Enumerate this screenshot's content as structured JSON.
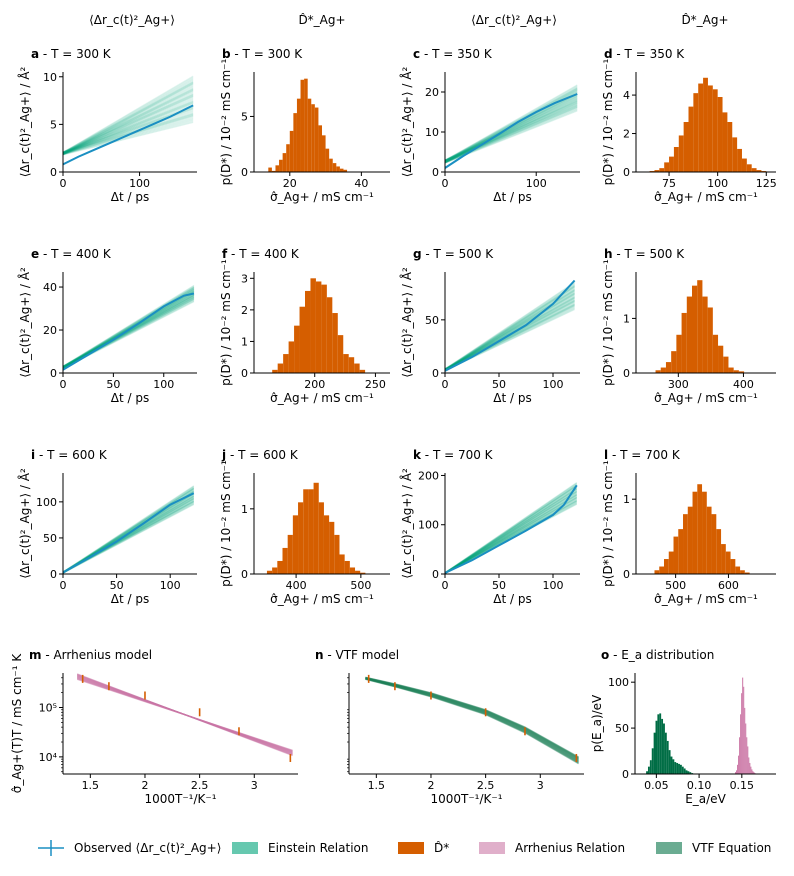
{
  "colors": {
    "observed": "#1a8fc2",
    "einstein": "#00a37a",
    "dstar": "#d55e00",
    "arrhenius": "#cc79a7",
    "vtf": "#1b7f58",
    "ea_arr": "#cc79a7",
    "ea_vtf": "#006d45"
  },
  "column_headers": [
    "⟨Δr_c(t)²_Ag+⟩",
    "D̂*_Ag+",
    "⟨Δr_c(t)²_Ag+⟩",
    "D̂*_Ag+"
  ],
  "legend": [
    "Observed ⟨Δr_c(t)²_Ag+⟩",
    "Einstein Relation",
    "D̂*",
    "Arrhenius Relation",
    "VTF Equation"
  ],
  "chart_data": [
    {
      "id": "a",
      "type": "line",
      "title_letter": "a",
      "title": " - T = 300 K",
      "xlabel": "Δt / ps",
      "ylabel": "⟨Δr_c(t)²_Ag+⟩ / Å²",
      "xlim": [
        0,
        175
      ],
      "ylim": [
        0,
        10.5
      ],
      "xticks": [
        0,
        100
      ],
      "yticks": [
        0,
        5,
        10
      ],
      "tmax": 170,
      "observed": {
        "x": [
          0,
          20,
          40,
          60,
          80,
          100,
          120,
          140,
          160,
          170
        ],
        "y": [
          0.8,
          1.6,
          2.3,
          3.0,
          3.7,
          4.4,
          5.1,
          5.8,
          6.6,
          7.0
        ]
      },
      "einstein": {
        "intercept": [
          1.8,
          2.1
        ],
        "slope": [
          0.02,
          0.047
        ]
      }
    },
    {
      "id": "b",
      "type": "bar",
      "title_letter": "b",
      "title": " - T = 300 K",
      "xlabel": "σ̂_Ag+ / mS cm⁻¹",
      "ylabel": "p(D*) / 10⁻² mS cm⁻¹",
      "xlim": [
        10,
        48
      ],
      "ylim": [
        0,
        9
      ],
      "xticks": [
        20,
        40
      ],
      "yticks": [
        0,
        5
      ],
      "edges_start": 14,
      "bin_width": 1,
      "values": [
        0.4,
        0.1,
        0.6,
        1.1,
        1.7,
        2.5,
        3.7,
        5.3,
        6.6,
        8.3,
        8.4,
        6.6,
        6.1,
        5.8,
        4.2,
        3.3,
        2.1,
        1.2,
        0.8,
        0.5,
        0.3,
        0.2
      ]
    },
    {
      "id": "c",
      "type": "line",
      "title_letter": "c",
      "title": " - T = 350 K",
      "xlabel": "Δt / ps",
      "ylabel": "⟨Δr_c(t)²_Ag+⟩ / Å²",
      "xlim": [
        0,
        148
      ],
      "ylim": [
        0,
        25
      ],
      "xticks": [
        0,
        100
      ],
      "yticks": [
        0,
        10,
        20
      ],
      "tmax": 145,
      "observed": {
        "x": [
          0,
          20,
          40,
          60,
          80,
          100,
          120,
          145
        ],
        "y": [
          1.0,
          4.0,
          6.8,
          9.6,
          12.5,
          15.0,
          17.2,
          19.5
        ]
      },
      "einstein": {
        "intercept": [
          2.2,
          3.0
        ],
        "slope": [
          0.09,
          0.13
        ]
      }
    },
    {
      "id": "d",
      "type": "bar",
      "title_letter": "d",
      "title": " - T = 350 K",
      "xlabel": "σ̂_Ag+ / mS cm⁻¹",
      "ylabel": "p(D*) / 10⁻² mS cm⁻¹",
      "xlim": [
        58,
        130
      ],
      "ylim": [
        0,
        5.2
      ],
      "xticks": [
        75,
        100,
        125
      ],
      "yticks": [
        0,
        2,
        4
      ],
      "edges_start": 65,
      "bin_width": 2.5,
      "values": [
        0.05,
        0.1,
        0.2,
        0.5,
        0.8,
        1.3,
        1.9,
        2.6,
        3.4,
        4.1,
        4.6,
        4.9,
        4.5,
        4.3,
        3.9,
        3.1,
        2.6,
        1.8,
        1.2,
        0.7,
        0.4,
        0.2,
        0.1,
        0.05
      ]
    },
    {
      "id": "e",
      "type": "line",
      "title_letter": "e",
      "title": " - T = 400 K",
      "xlabel": "Δt / ps",
      "ylabel": "⟨Δr_c(t)²_Ag+⟩ / Å²",
      "xlim": [
        0,
        133
      ],
      "ylim": [
        0,
        47
      ],
      "xticks": [
        0,
        50,
        100
      ],
      "yticks": [
        0,
        20,
        40
      ],
      "tmax": 130,
      "observed": {
        "x": [
          0,
          25,
          50,
          75,
          100,
          120,
          130
        ],
        "y": [
          1.5,
          8.5,
          15.5,
          23,
          31,
          36,
          37
        ]
      },
      "einstein": {
        "intercept": [
          2.0,
          3.2
        ],
        "slope": [
          0.24,
          0.29
        ]
      }
    },
    {
      "id": "f",
      "type": "bar",
      "title_letter": "f",
      "title": " - T = 400 K",
      "xlabel": "σ̂_Ag+ / mS cm⁻¹",
      "ylabel": "p(D*) / 10⁻² mS cm⁻¹",
      "xlim": [
        150,
        262
      ],
      "ylim": [
        0,
        3.2
      ],
      "xticks": [
        200,
        250
      ],
      "yticks": [
        0,
        1,
        2,
        3
      ],
      "edges_start": 165,
      "bin_width": 4.5,
      "values": [
        0.1,
        0.3,
        0.6,
        1.0,
        1.5,
        2.1,
        2.6,
        3.0,
        2.9,
        2.8,
        2.4,
        1.9,
        1.2,
        0.6,
        0.5,
        0.3,
        0.1
      ]
    },
    {
      "id": "g",
      "type": "line",
      "title_letter": "g",
      "title": " - T = 500 K",
      "xlabel": "Δt / ps",
      "ylabel": "⟨Δr_c(t)²_Ag+⟩ / Å²",
      "xlim": [
        0,
        125
      ],
      "ylim": [
        0,
        95
      ],
      "xticks": [
        0,
        50,
        100
      ],
      "yticks": [
        0,
        50
      ],
      "tmax": 120,
      "observed": {
        "x": [
          0,
          25,
          50,
          75,
          100,
          110,
          120
        ],
        "y": [
          2,
          15,
          30,
          45,
          65,
          76,
          87
        ]
      },
      "einstein": {
        "intercept": [
          2,
          4
        ],
        "slope": [
          0.48,
          0.68
        ]
      }
    },
    {
      "id": "h",
      "type": "bar",
      "title_letter": "h",
      "title": " - T = 500 K",
      "xlabel": "σ̂_Ag+ / mS cm⁻¹",
      "ylabel": "p(D*) / 10⁻² mS cm⁻¹",
      "xlim": [
        235,
        450
      ],
      "ylim": [
        0,
        1.85
      ],
      "xticks": [
        300,
        400
      ],
      "yticks": [
        0,
        1
      ],
      "edges_start": 265,
      "bin_width": 8,
      "values": [
        0.05,
        0.1,
        0.2,
        0.4,
        0.7,
        1.1,
        1.4,
        1.6,
        1.7,
        1.4,
        1.2,
        0.7,
        0.5,
        0.3,
        0.1,
        0.05,
        0.03
      ]
    },
    {
      "id": "i",
      "type": "line",
      "title_letter": "i",
      "title": " - T = 600 K",
      "xlabel": "Δt / ps",
      "ylabel": "⟨Δr_c(t)²_Ag+⟩ / Å²",
      "xlim": [
        0,
        125
      ],
      "ylim": [
        0,
        140
      ],
      "xticks": [
        0,
        50,
        100
      ],
      "yticks": [
        0,
        50,
        100
      ],
      "tmax": 122,
      "observed": {
        "x": [
          0,
          25,
          50,
          75,
          100,
          122
        ],
        "y": [
          2,
          23,
          45,
          70,
          96,
          112
        ]
      },
      "einstein": {
        "intercept": [
          1,
          3
        ],
        "slope": [
          0.78,
          0.98
        ]
      }
    },
    {
      "id": "j",
      "type": "bar",
      "title_letter": "j",
      "title": " - T = 600 K",
      "xlabel": "σ̂_Ag+ / mS cm⁻¹",
      "ylabel": "p(D*) / 10⁻² mS cm⁻¹",
      "xlim": [
        335,
        545
      ],
      "ylim": [
        0,
        1.55
      ],
      "xticks": [
        400,
        500
      ],
      "yticks": [
        0,
        1
      ],
      "edges_start": 355,
      "bin_width": 8,
      "values": [
        0.05,
        0.1,
        0.2,
        0.4,
        0.6,
        0.9,
        1.1,
        1.3,
        1.3,
        1.4,
        1.1,
        0.9,
        0.8,
        0.6,
        0.3,
        0.2,
        0.1,
        0.05,
        0.02
      ]
    },
    {
      "id": "k",
      "type": "line",
      "title_letter": "k",
      "title": " - T = 700 K",
      "xlabel": "Δt / ps",
      "ylabel": "⟨Δr_c(t)²_Ag+⟩ / Å²",
      "xlim": [
        0,
        125
      ],
      "ylim": [
        0,
        205
      ],
      "xticks": [
        0,
        50,
        100
      ],
      "yticks": [
        0,
        100,
        200
      ],
      "tmax": 122,
      "observed": {
        "x": [
          0,
          25,
          50,
          75,
          100,
          110,
          122
        ],
        "y": [
          2,
          28,
          58,
          88,
          120,
          140,
          180
        ]
      },
      "einstein": {
        "intercept": [
          1,
          3
        ],
        "slope": [
          1.15,
          1.5
        ]
      }
    },
    {
      "id": "l",
      "type": "bar",
      "title_letter": "l",
      "title": " - T = 700 K",
      "xlabel": "σ̂_Ag+ / mS cm⁻¹",
      "ylabel": "p(D*) / 10⁻² mS cm⁻¹",
      "xlim": [
        425,
        690
      ],
      "ylim": [
        0,
        1.35
      ],
      "xticks": [
        500,
        600
      ],
      "yticks": [
        0,
        1
      ],
      "edges_start": 460,
      "bin_width": 9,
      "values": [
        0.05,
        0.1,
        0.2,
        0.3,
        0.5,
        0.6,
        0.8,
        0.9,
        1.1,
        1.2,
        1.1,
        0.9,
        0.8,
        0.6,
        0.4,
        0.3,
        0.2,
        0.1,
        0.05,
        0.02
      ]
    },
    {
      "id": "m",
      "type": "line",
      "log_y": true,
      "title_letter": "m",
      "title": " - Arrhenius model",
      "xlabel": "1000T⁻¹/K⁻¹",
      "ylabel": "σ̂_Ag+(T)T / mS cm⁻¹ K",
      "xlim": [
        1.25,
        3.4
      ],
      "ylim": [
        4500,
        500000
      ],
      "xticks": [
        1.5,
        2.0,
        2.5,
        3.0
      ],
      "ytick_values": [
        10000,
        100000
      ],
      "ytick_labels": [
        "10⁴",
        "10⁵"
      ],
      "points": {
        "x": [
          1.43,
          1.67,
          2.0,
          2.5,
          2.86,
          3.33
        ],
        "y": [
          380000,
          270000,
          175000,
          80000,
          33000,
          9500
        ]
      },
      "fit": {
        "x0": 1.38,
        "y0": 430000,
        "x1": 3.35,
        "y1": 12000,
        "band_lo": 0.88,
        "band_hi": 1.14
      }
    },
    {
      "id": "n",
      "type": "line",
      "log_y": true,
      "title_letter": "n",
      "title": " - VTF model",
      "xlabel": "1000T⁻¹/K⁻¹",
      "ylabel": "",
      "xlim": [
        1.25,
        3.4
      ],
      "ylim": [
        4500,
        500000
      ],
      "xticks": [
        1.5,
        2.0,
        2.5,
        3.0
      ],
      "ytick_values": [],
      "ytick_labels": [],
      "points": {
        "x": [
          1.43,
          1.67,
          2.0,
          2.5,
          2.86,
          3.33
        ],
        "y": [
          380000,
          270000,
          175000,
          80000,
          33000,
          9500
        ]
      },
      "fit": {
        "x": [
          1.4,
          1.67,
          2.0,
          2.5,
          2.86,
          3.35
        ],
        "y": [
          390000,
          280000,
          180000,
          80000,
          35000,
          8500
        ],
        "band_lo": 0.85,
        "band_hi": 1.18
      }
    },
    {
      "id": "o",
      "type": "bar",
      "title_letter": "o",
      "title": " - E_a distribution",
      "xlabel": "E_a/eV",
      "ylabel": "p(E_a)/eV",
      "xlim": [
        0.025,
        0.19
      ],
      "ylim": [
        0,
        110
      ],
      "xticks": [
        0.05,
        0.1,
        0.15
      ],
      "yticks": [
        0,
        50,
        100
      ],
      "series": [
        {
          "edges_start": 0.038,
          "bin_width": 0.0022,
          "values": [
            3,
            8,
            15,
            28,
            45,
            58,
            65,
            66,
            60,
            55,
            45,
            36,
            26,
            19,
            16,
            13,
            12,
            11,
            10,
            8,
            6,
            4,
            3,
            2,
            1
          ]
        },
        {
          "edges_start": 0.142,
          "bin_width": 0.0012,
          "values": [
            2,
            4,
            10,
            20,
            40,
            65,
            88,
            105,
            95,
            72,
            55,
            40,
            30,
            18,
            12,
            8,
            5,
            3,
            2,
            1
          ]
        }
      ]
    }
  ]
}
